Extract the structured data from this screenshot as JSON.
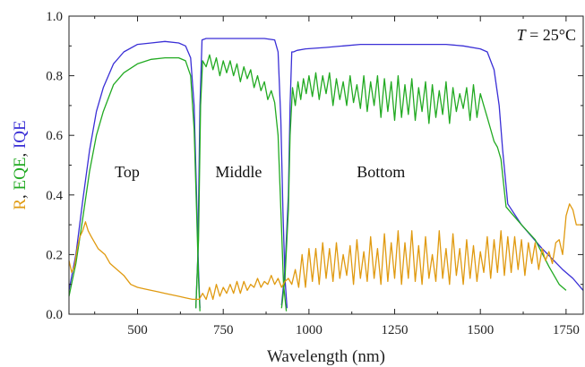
{
  "chart_data": {
    "type": "line",
    "xlabel": "Wavelength (nm)",
    "ylabel_parts": [
      {
        "text": "R",
        "color": "#e09a10"
      },
      {
        "text": ", ",
        "color": "#222222"
      },
      {
        "text": "EQE",
        "color": "#22aa22"
      },
      {
        "text": ", ",
        "color": "#222222"
      },
      {
        "text": "IQE",
        "color": "#3a2fd6"
      }
    ],
    "xlim": [
      300,
      1800
    ],
    "ylim": [
      0,
      1.0
    ],
    "xticks": [
      500,
      750,
      1000,
      1250,
      1500,
      1750
    ],
    "yticks": [
      0.0,
      0.2,
      0.4,
      0.6,
      0.8,
      1.0
    ],
    "ytick_labels": [
      "0.0",
      "0.2",
      "0.4",
      "0.6",
      "0.8",
      "1.0"
    ],
    "grid": false,
    "annotations": [
      {
        "text": "Top",
        "x": 470,
        "y": 0.46
      },
      {
        "text": "Middle",
        "x": 795,
        "y": 0.46
      },
      {
        "text": "Bottom",
        "x": 1210,
        "y": 0.46
      }
    ],
    "temperature_label": {
      "symbol": "T",
      "rest": " = 25°C"
    },
    "series": [
      {
        "name": "IQE",
        "color": "#3a2fd6",
        "segments": [
          {
            "x": [
              300,
              320,
              340,
              360,
              380,
              400,
              430,
              460,
              500,
              540,
              580,
              620,
              640,
              655,
              665,
              672,
              678,
              682
            ],
            "y": [
              0.08,
              0.2,
              0.38,
              0.55,
              0.68,
              0.76,
              0.84,
              0.88,
              0.905,
              0.91,
              0.915,
              0.91,
              0.9,
              0.86,
              0.7,
              0.4,
              0.15,
              0.02
            ]
          },
          {
            "x": [
              670,
              676,
              682,
              688,
              700,
              730,
              800,
              870,
              900,
              910,
              918,
              924,
              930,
              936
            ],
            "y": [
              0.02,
              0.2,
              0.7,
              0.92,
              0.925,
              0.925,
              0.925,
              0.925,
              0.92,
              0.88,
              0.65,
              0.35,
              0.12,
              0.02
            ]
          },
          {
            "x": [
              920,
              930,
              940,
              945,
              950,
              955,
              965,
              990,
              1050,
              1100,
              1150,
              1200,
              1250,
              1300,
              1350,
              1400,
              1450,
              1500,
              1520,
              1540,
              1555,
              1565,
              1580,
              1620,
              1680,
              1740,
              1770,
              1800
            ],
            "y": [
              0.03,
              0.15,
              0.4,
              0.7,
              0.88,
              0.88,
              0.885,
              0.89,
              0.895,
              0.9,
              0.905,
              0.905,
              0.905,
              0.905,
              0.905,
              0.905,
              0.9,
              0.89,
              0.88,
              0.82,
              0.7,
              0.55,
              0.37,
              0.3,
              0.22,
              0.15,
              0.12,
              0.08
            ]
          }
        ]
      },
      {
        "name": "EQE",
        "color": "#22aa22",
        "segments": [
          {
            "x": [
              300,
              320,
              340,
              360,
              380,
              400,
              430,
              460,
              500,
              540,
              580,
              620,
              640,
              655,
              665,
              672,
              678,
              682
            ],
            "y": [
              0.06,
              0.17,
              0.32,
              0.48,
              0.6,
              0.68,
              0.77,
              0.81,
              0.84,
              0.855,
              0.86,
              0.86,
              0.85,
              0.8,
              0.62,
              0.35,
              0.12,
              0.01
            ]
          },
          {
            "x": [
              670,
              678,
              684,
              690,
              700,
              710,
              720,
              730,
              740,
              750,
              760,
              770,
              780,
              790,
              800,
              810,
              820,
              830,
              840,
              850,
              860,
              870,
              880,
              890,
              900,
              910,
              918,
              926,
              934
            ],
            "y": [
              0.02,
              0.25,
              0.7,
              0.85,
              0.83,
              0.87,
              0.82,
              0.86,
              0.8,
              0.85,
              0.81,
              0.85,
              0.8,
              0.84,
              0.78,
              0.83,
              0.79,
              0.82,
              0.76,
              0.8,
              0.75,
              0.78,
              0.72,
              0.75,
              0.71,
              0.6,
              0.35,
              0.1,
              0.01
            ]
          },
          {
            "x": [
              920,
              930,
              940,
              945,
              952,
              960,
              968,
              976,
              984,
              992,
              1000,
              1010,
              1020,
              1030,
              1040,
              1050,
              1060,
              1070,
              1080,
              1090,
              1100,
              1110,
              1120,
              1130,
              1140,
              1150,
              1160,
              1170,
              1180,
              1190,
              1200,
              1210,
              1220,
              1230,
              1240,
              1250,
              1260,
              1270,
              1280,
              1290,
              1300,
              1310,
              1320,
              1330,
              1340,
              1350,
              1360,
              1370,
              1380,
              1390,
              1400,
              1410,
              1420,
              1430,
              1440,
              1450,
              1460,
              1470,
              1480,
              1490,
              1500,
              1510,
              1520,
              1530,
              1540,
              1550,
              1560,
              1575,
              1590,
              1620,
              1660,
              1700,
              1730,
              1750
            ],
            "y": [
              0.02,
              0.12,
              0.35,
              0.6,
              0.76,
              0.7,
              0.78,
              0.72,
              0.79,
              0.74,
              0.8,
              0.73,
              0.81,
              0.72,
              0.8,
              0.74,
              0.81,
              0.7,
              0.79,
              0.72,
              0.78,
              0.7,
              0.8,
              0.71,
              0.77,
              0.69,
              0.8,
              0.68,
              0.78,
              0.7,
              0.8,
              0.66,
              0.79,
              0.68,
              0.78,
              0.65,
              0.8,
              0.66,
              0.77,
              0.67,
              0.79,
              0.65,
              0.76,
              0.68,
              0.78,
              0.64,
              0.77,
              0.66,
              0.75,
              0.67,
              0.78,
              0.64,
              0.76,
              0.68,
              0.74,
              0.69,
              0.76,
              0.65,
              0.77,
              0.66,
              0.74,
              0.7,
              0.66,
              0.62,
              0.58,
              0.56,
              0.52,
              0.36,
              0.34,
              0.3,
              0.25,
              0.16,
              0.1,
              0.08
            ]
          }
        ]
      },
      {
        "name": "R",
        "color": "#e09a10",
        "segments": [
          {
            "x": [
              300,
              308,
              316,
              324,
              332,
              340,
              348,
              356,
              365,
              375,
              385,
              395,
              405,
              420,
              440,
              460,
              480,
              500,
              520,
              540,
              560,
              580,
              600,
              620,
              640,
              660,
              680,
              690,
              700,
              710,
              720,
              730,
              740,
              750,
              760,
              770,
              780,
              790,
              800,
              810,
              820,
              830,
              840,
              850,
              860,
              870,
              880,
              890,
              900,
              910,
              920,
              930,
              940,
              950,
              960,
              970,
              980,
              990,
              1000,
              1010,
              1020,
              1030,
              1040,
              1050,
              1060,
              1070,
              1080,
              1090,
              1100,
              1110,
              1120,
              1130,
              1140,
              1150,
              1160,
              1170,
              1180,
              1190,
              1200,
              1210,
              1220,
              1230,
              1240,
              1250,
              1260,
              1270,
              1280,
              1290,
              1300,
              1310,
              1320,
              1330,
              1340,
              1350,
              1360,
              1370,
              1380,
              1390,
              1400,
              1410,
              1420,
              1430,
              1440,
              1450,
              1460,
              1470,
              1480,
              1490,
              1500,
              1510,
              1520,
              1530,
              1540,
              1550,
              1560,
              1570,
              1580,
              1590,
              1600,
              1610,
              1620,
              1630,
              1640,
              1650,
              1660,
              1670,
              1680,
              1690,
              1700,
              1710,
              1720,
              1730,
              1740,
              1750,
              1760,
              1770,
              1780,
              1790,
              1800
            ],
            "y": [
              0.18,
              0.14,
              0.16,
              0.22,
              0.26,
              0.28,
              0.31,
              0.28,
              0.26,
              0.24,
              0.22,
              0.21,
              0.2,
              0.17,
              0.15,
              0.13,
              0.1,
              0.09,
              0.085,
              0.08,
              0.075,
              0.07,
              0.065,
              0.06,
              0.055,
              0.05,
              0.05,
              0.07,
              0.05,
              0.09,
              0.05,
              0.1,
              0.06,
              0.09,
              0.07,
              0.1,
              0.07,
              0.11,
              0.07,
              0.11,
              0.08,
              0.1,
              0.09,
              0.12,
              0.09,
              0.11,
              0.1,
              0.13,
              0.1,
              0.12,
              0.09,
              0.11,
              0.12,
              0.1,
              0.15,
              0.09,
              0.2,
              0.09,
              0.22,
              0.11,
              0.22,
              0.1,
              0.24,
              0.12,
              0.22,
              0.11,
              0.24,
              0.12,
              0.2,
              0.13,
              0.23,
              0.1,
              0.25,
              0.12,
              0.21,
              0.11,
              0.26,
              0.12,
              0.22,
              0.1,
              0.27,
              0.11,
              0.24,
              0.12,
              0.28,
              0.1,
              0.24,
              0.12,
              0.28,
              0.11,
              0.23,
              0.1,
              0.26,
              0.12,
              0.2,
              0.11,
              0.28,
              0.12,
              0.22,
              0.1,
              0.27,
              0.13,
              0.22,
              0.1,
              0.25,
              0.12,
              0.23,
              0.11,
              0.21,
              0.14,
              0.26,
              0.12,
              0.25,
              0.14,
              0.28,
              0.13,
              0.26,
              0.14,
              0.26,
              0.15,
              0.25,
              0.13,
              0.24,
              0.17,
              0.24,
              0.15,
              0.22,
              0.18,
              0.21,
              0.17,
              0.24,
              0.25,
              0.2,
              0.33,
              0.37,
              0.35,
              0.3,
              0.3,
              0.3
            ]
          }
        ]
      }
    ]
  }
}
